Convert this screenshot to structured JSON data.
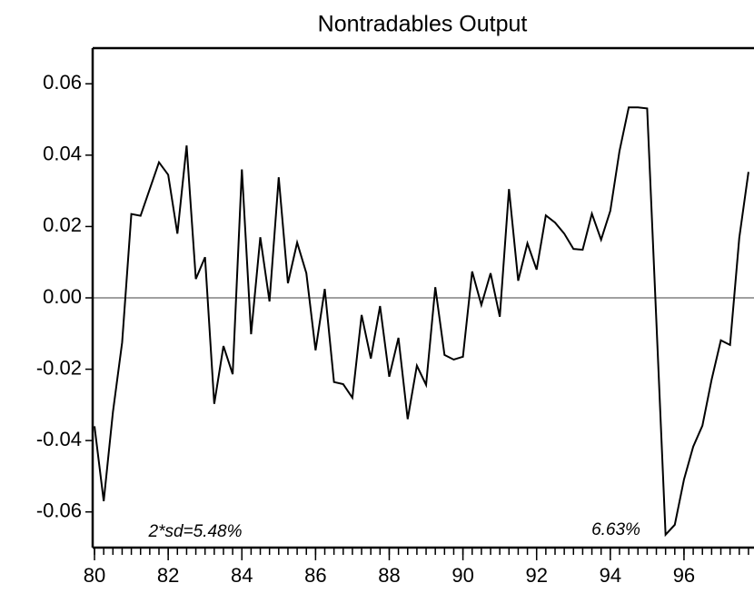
{
  "chart_data": {
    "type": "line",
    "title": "Nontradables Output",
    "annotations": [
      "2*sd=5.48%",
      "6.63%"
    ],
    "x": [
      80,
      80.25,
      80.5,
      80.75,
      81,
      81.25,
      81.5,
      81.75,
      82,
      82.25,
      82.5,
      82.75,
      83,
      83.25,
      83.5,
      83.75,
      84,
      84.25,
      84.5,
      84.75,
      85,
      85.25,
      85.5,
      85.75,
      86,
      86.25,
      86.5,
      86.75,
      87,
      87.25,
      87.5,
      87.75,
      88,
      88.25,
      88.5,
      88.75,
      89,
      89.25,
      89.5,
      89.75,
      90,
      90.25,
      90.5,
      90.75,
      91,
      91.25,
      91.5,
      91.75,
      92,
      92.25,
      92.5,
      92.75,
      93,
      93.25,
      93.5,
      93.75,
      94,
      94.25,
      94.5,
      94.75,
      95,
      95.25,
      95.5,
      95.75,
      96,
      96.25,
      96.5,
      96.75,
      97,
      97.25,
      97.5,
      97.75
    ],
    "series": [
      {
        "name": "Nontradables Output",
        "color": "#000000",
        "values": [
          -0.036,
          -0.057,
          -0.032,
          -0.0125,
          0.0235,
          0.023,
          0.0305,
          0.038,
          0.0345,
          0.018,
          0.0427,
          0.0053,
          0.0114,
          -0.0297,
          -0.0135,
          -0.0214,
          0.036,
          -0.0102,
          0.017,
          -0.001,
          0.0338,
          0.0041,
          0.0155,
          0.0069,
          -0.0147,
          0.0025,
          -0.0236,
          -0.0242,
          -0.028,
          -0.0048,
          -0.017,
          -0.0023,
          -0.0221,
          -0.0112,
          -0.034,
          -0.019,
          -0.0244,
          0.003,
          -0.016,
          -0.0173,
          -0.0165,
          0.0074,
          -0.002,
          0.0069,
          -0.0053,
          0.0305,
          0.0048,
          0.0153,
          0.0079,
          0.0231,
          0.0211,
          0.018,
          0.0137,
          0.0135,
          0.0236,
          0.0163,
          0.0244,
          0.0412,
          0.0534,
          0.0534,
          0.0531,
          -0.0065,
          -0.0664,
          -0.0636,
          -0.0509,
          -0.0417,
          -0.0358,
          -0.0229,
          -0.0119,
          -0.0132,
          0.0168,
          0.0353
        ]
      }
    ],
    "xlim": [
      79.95,
      97.9
    ],
    "xticks": [
      80,
      82,
      84,
      86,
      88,
      90,
      92,
      94,
      96
    ],
    "ylim": [
      -0.07,
      0.07
    ],
    "yticks": [
      0.06,
      0.04,
      0.02,
      {
        "value": 0,
        "label": "0.00"
      },
      -0.02,
      -0.04,
      -0.06
    ],
    "zero_line": true
  }
}
